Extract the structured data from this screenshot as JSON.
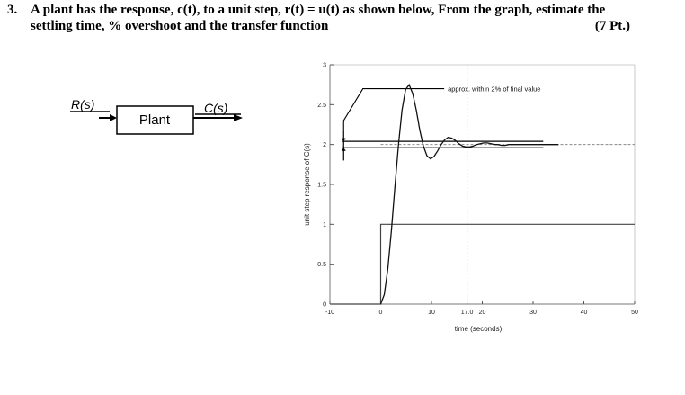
{
  "question": {
    "number": "3.",
    "line1": "A plant has the response, c(t), to a unit step, r(t) = u(t) as shown below, From the graph, estimate the",
    "line2": "settling time, % overshoot and the transfer function",
    "points": "(7 Pt.)"
  },
  "block_diagram": {
    "input_label": "R(s)",
    "block_label": "Plant",
    "output_label": "C(s)"
  },
  "chart_data": {
    "type": "line",
    "xlabel": "time (seconds)",
    "ylabel": "unit step response of C(s)",
    "xlim": [
      -10,
      50
    ],
    "ylim": [
      0,
      3
    ],
    "x_ticks": [
      "-10",
      "0",
      "10",
      "17.0",
      "20",
      "30",
      "40",
      "50"
    ],
    "y_ticks": [
      "0",
      "0.5",
      "1",
      "1.5",
      "2",
      "2.5",
      "3"
    ],
    "annotation": "approx. within 2% of final value",
    "settling_time_marker": 17.0,
    "final_value": 2.0,
    "tolerance_band": [
      1.96,
      2.04
    ],
    "series": [
      {
        "x": [
          -10,
          0,
          0,
          50
        ],
        "y": [
          0,
          0,
          1,
          1
        ]
      },
      {
        "x": [
          0,
          0.7,
          1.4,
          2.1,
          2.8,
          3.5,
          4.2,
          4.9,
          5.6,
          6.3,
          7.0,
          7.7,
          8.4,
          9.1,
          9.8,
          10.5,
          11.2,
          11.9,
          12.6,
          13.3,
          14.0,
          14.7,
          15.4,
          16.1,
          16.8,
          17.5,
          18.2,
          18.9,
          19.6,
          20.3,
          21.0,
          21.7,
          22.4,
          23.1,
          23.8,
          24.5,
          25.2,
          25.9,
          26.6,
          27.3,
          28.0,
          28.7,
          29.4,
          30.1,
          30.8,
          31.5,
          32.2,
          32.9,
          33.6,
          34.3,
          35.0
        ],
        "y": [
          0.0,
          0.12,
          0.44,
          0.92,
          1.47,
          2.0,
          2.43,
          2.69,
          2.75,
          2.64,
          2.43,
          2.18,
          1.98,
          1.86,
          1.82,
          1.85,
          1.92,
          2.0,
          2.06,
          2.09,
          2.08,
          2.05,
          2.01,
          1.98,
          1.97,
          1.97,
          1.98,
          2.0,
          2.01,
          2.02,
          2.02,
          2.01,
          2.0,
          2.0,
          1.99,
          1.99,
          2.0,
          2.0,
          2.0,
          2.0,
          2.0,
          2.0,
          2.0,
          2.0,
          2.0,
          2.0,
          2.0,
          2.0,
          2.0,
          2.0,
          2.0
        ]
      }
    ]
  }
}
